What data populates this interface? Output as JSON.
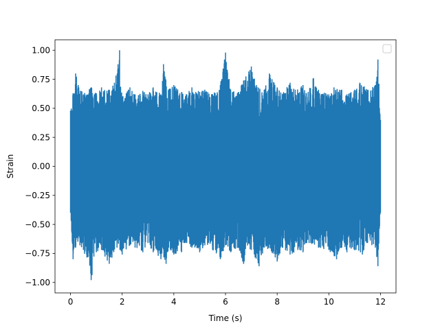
{
  "chart_data": {
    "type": "line",
    "title": "",
    "xlabel": "Time (s)",
    "ylabel": "Strain",
    "xlim": [
      -0.6,
      12.6
    ],
    "ylim": [
      -1.09,
      1.09
    ],
    "x_ticks": [
      {
        "value": 0,
        "label": "0"
      },
      {
        "value": 2,
        "label": "2"
      },
      {
        "value": 4,
        "label": "4"
      },
      {
        "value": 6,
        "label": "6"
      },
      {
        "value": 8,
        "label": "8"
      },
      {
        "value": 10,
        "label": "10"
      },
      {
        "value": 12,
        "label": "12"
      }
    ],
    "y_ticks": [
      {
        "value": -1.0,
        "label": "−1.00"
      },
      {
        "value": -0.75,
        "label": "−0.75"
      },
      {
        "value": -0.5,
        "label": "−0.50"
      },
      {
        "value": -0.25,
        "label": "−0.25"
      },
      {
        "value": 0.0,
        "label": "0.00"
      },
      {
        "value": 0.25,
        "label": "0.25"
      },
      {
        "value": 0.5,
        "label": "0.50"
      },
      {
        "value": 0.75,
        "label": "0.75"
      },
      {
        "value": 1.0,
        "label": "1.00"
      }
    ],
    "grid": false,
    "legend": {
      "placement": "upper-right",
      "entries": []
    },
    "series": [
      {
        "color": "#1f77b4",
        "x_range": [
          0,
          12
        ],
        "envelope_upper": [
          [
            0.0,
            0.48
          ],
          [
            0.1,
            0.63
          ],
          [
            0.2,
            0.8
          ],
          [
            0.3,
            0.7
          ],
          [
            0.5,
            0.62
          ],
          [
            0.8,
            0.68
          ],
          [
            1.0,
            0.63
          ],
          [
            1.2,
            0.68
          ],
          [
            1.5,
            0.66
          ],
          [
            1.7,
            0.72
          ],
          [
            1.9,
            1.0
          ],
          [
            2.0,
            0.6
          ],
          [
            2.3,
            0.68
          ],
          [
            2.5,
            0.62
          ],
          [
            2.8,
            0.65
          ],
          [
            3.0,
            0.62
          ],
          [
            3.2,
            0.68
          ],
          [
            3.5,
            0.62
          ],
          [
            3.6,
            0.88
          ],
          [
            3.8,
            0.66
          ],
          [
            4.0,
            0.7
          ],
          [
            4.3,
            0.64
          ],
          [
            4.5,
            0.62
          ],
          [
            4.7,
            0.68
          ],
          [
            5.0,
            0.64
          ],
          [
            5.2,
            0.66
          ],
          [
            5.5,
            0.62
          ],
          [
            5.8,
            0.7
          ],
          [
            6.0,
            0.98
          ],
          [
            6.2,
            0.66
          ],
          [
            6.5,
            0.64
          ],
          [
            6.7,
            0.74
          ],
          [
            7.0,
            0.86
          ],
          [
            7.2,
            0.7
          ],
          [
            7.5,
            0.66
          ],
          [
            7.7,
            0.8
          ],
          [
            8.0,
            0.68
          ],
          [
            8.2,
            0.62
          ],
          [
            8.5,
            0.72
          ],
          [
            8.7,
            0.66
          ],
          [
            9.0,
            0.7
          ],
          [
            9.2,
            0.64
          ],
          [
            9.4,
            0.76
          ],
          [
            9.6,
            0.66
          ],
          [
            10.0,
            0.62
          ],
          [
            10.2,
            0.68
          ],
          [
            10.5,
            0.66
          ],
          [
            10.7,
            0.62
          ],
          [
            11.0,
            0.66
          ],
          [
            11.2,
            0.72
          ],
          [
            11.5,
            0.66
          ],
          [
            11.8,
            0.7
          ],
          [
            11.9,
            0.92
          ],
          [
            12.0,
            0.4
          ]
        ],
        "envelope_lower": [
          [
            0.0,
            -0.4
          ],
          [
            0.1,
            -0.8
          ],
          [
            0.2,
            -0.7
          ],
          [
            0.5,
            -0.72
          ],
          [
            0.8,
            -0.98
          ],
          [
            1.0,
            -0.74
          ],
          [
            1.2,
            -0.72
          ],
          [
            1.5,
            -0.84
          ],
          [
            1.8,
            -0.7
          ],
          [
            2.0,
            -0.76
          ],
          [
            2.3,
            -0.68
          ],
          [
            2.5,
            -0.7
          ],
          [
            2.8,
            -0.74
          ],
          [
            3.0,
            -0.66
          ],
          [
            3.2,
            -0.74
          ],
          [
            3.5,
            -0.8
          ],
          [
            3.7,
            -0.84
          ],
          [
            3.8,
            -0.7
          ],
          [
            4.0,
            -0.76
          ],
          [
            4.3,
            -0.74
          ],
          [
            4.5,
            -0.66
          ],
          [
            4.7,
            -0.7
          ],
          [
            5.0,
            -0.74
          ],
          [
            5.2,
            -0.68
          ],
          [
            5.5,
            -0.72
          ],
          [
            5.8,
            -0.8
          ],
          [
            6.0,
            -0.68
          ],
          [
            6.2,
            -0.74
          ],
          [
            6.5,
            -0.7
          ],
          [
            6.7,
            -0.84
          ],
          [
            7.0,
            -0.72
          ],
          [
            7.3,
            -0.86
          ],
          [
            7.5,
            -0.7
          ],
          [
            7.8,
            -0.74
          ],
          [
            8.0,
            -0.82
          ],
          [
            8.2,
            -0.7
          ],
          [
            8.5,
            -0.76
          ],
          [
            8.8,
            -0.72
          ],
          [
            9.0,
            -0.74
          ],
          [
            9.3,
            -0.66
          ],
          [
            9.6,
            -0.7
          ],
          [
            10.0,
            -0.72
          ],
          [
            10.3,
            -0.8
          ],
          [
            10.5,
            -0.7
          ],
          [
            10.7,
            -0.74
          ],
          [
            11.0,
            -0.72
          ],
          [
            11.3,
            -0.76
          ],
          [
            11.5,
            -0.66
          ],
          [
            11.8,
            -0.7
          ],
          [
            11.9,
            -0.86
          ],
          [
            12.0,
            -0.4
          ]
        ]
      }
    ]
  }
}
